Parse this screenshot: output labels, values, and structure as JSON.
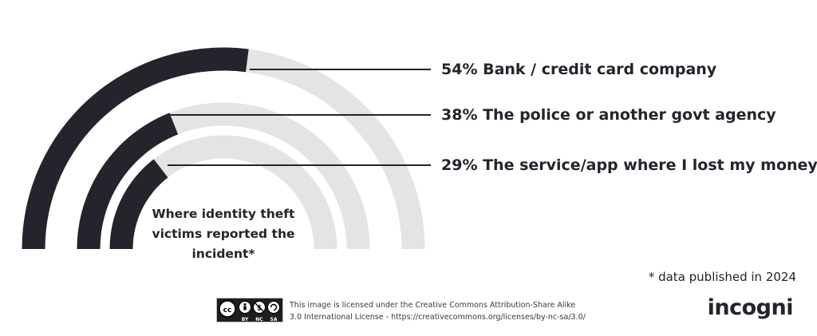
{
  "chart_data": {
    "type": "radial-bar",
    "title": "Where identity theft victims reported the incident*",
    "unit": "%",
    "series": [
      {
        "name": "Bank / credit card company",
        "value": 54,
        "label": "54% Bank / credit card company"
      },
      {
        "name": "The police or another govt agency",
        "value": 38,
        "label": "38% The police or another govt agency"
      },
      {
        "name": "The service/app where I lost my money",
        "value": 29,
        "label": "29% The service/app where I lost my money"
      }
    ],
    "max": 100,
    "colors": {
      "bar": "#23242c",
      "track": "#e4e4e4",
      "leader": "#23242c"
    }
  },
  "footnote": "* data published in 2024",
  "license": {
    "line1": "This image is licensed under the Creative Commons Attribution-Share Alike",
    "line2": "3.0 International License - https://creativecommons.org/licenses/by-nc-sa/3.0/",
    "badge": {
      "by": "BY",
      "nc": "NC",
      "sa": "SA"
    }
  },
  "brand": "incogni"
}
